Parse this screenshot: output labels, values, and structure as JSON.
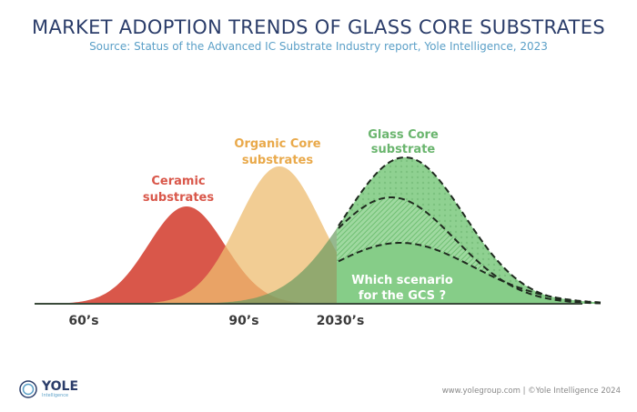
{
  "title": "MARKET ADOPTION TRENDS OF GLASS CORE SUBSTRATES",
  "subtitle": "Source: Status of the Advanced IC Substrate Industry report, Yole Intelligence, 2023",
  "curves": {
    "ceramic": {
      "label": [
        "Ceramic",
        "substrates"
      ],
      "color": "#d9574a"
    },
    "organic": {
      "label": [
        "Organic Core",
        "substrates"
      ],
      "color": "#eebc70"
    },
    "glass": {
      "label": [
        "Glass Core",
        "substrate"
      ],
      "color": "#7cc57e"
    }
  },
  "scenario_text": [
    "Which scenario",
    "for the GCS ?"
  ],
  "axis_labels": [
    "60’s",
    "90’s",
    "2030’s"
  ],
  "footer": {
    "logo_text": "YOLE",
    "logo_sub": "Intelligence",
    "credit": "www.yolegroup.com | ©Yole Intelligence 2024"
  }
}
